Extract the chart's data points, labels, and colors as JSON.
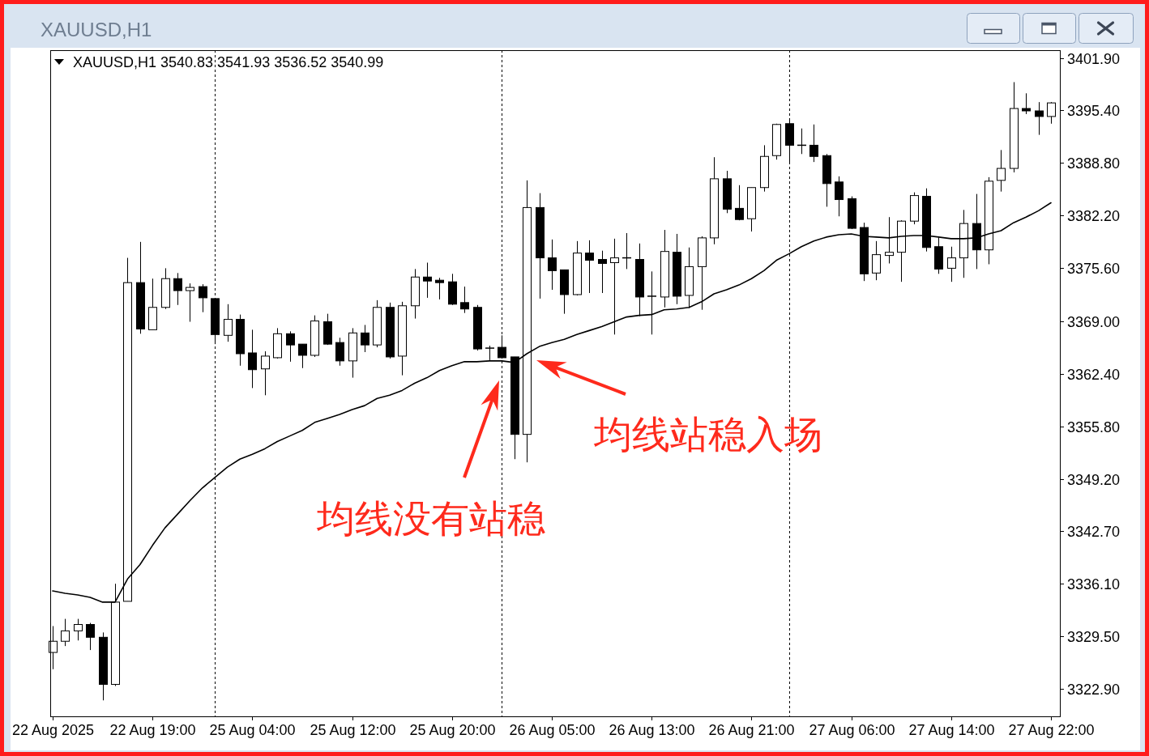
{
  "chart_data": {
    "type": "candlestick",
    "title": "XAUUSD,H1",
    "subtitle": "XAUUSD,H1 3540.83 3541.93 3536.52 3540.99",
    "categories": [
      "22 Aug 2025",
      null,
      null,
      null,
      null,
      null,
      null,
      null,
      "22 Aug 19:00",
      null,
      null,
      null,
      null,
      null,
      null,
      null,
      "25 Aug 04:00",
      null,
      null,
      null,
      null,
      null,
      null,
      null,
      "25 Aug 12:00",
      null,
      null,
      null,
      null,
      null,
      null,
      null,
      "25 Aug 20:00",
      null,
      null,
      null,
      null,
      null,
      null,
      null,
      "26 Aug 05:00",
      null,
      null,
      null,
      null,
      null,
      null,
      null,
      "26 Aug 13:00",
      null,
      null,
      null,
      null,
      null,
      null,
      null,
      "26 Aug 21:00",
      null,
      null,
      null,
      null,
      null,
      null,
      null,
      "27 Aug 06:00",
      null,
      null,
      null,
      null,
      null,
      null,
      null,
      "27 Aug 14:00",
      null,
      null,
      null,
      null,
      null,
      null,
      null,
      "27 Aug 22:00"
    ],
    "ohlc": [
      [
        3327.5,
        3330.8,
        3325.4,
        3328.9
      ],
      [
        3328.9,
        3331.7,
        3328.3,
        3330.2
      ],
      [
        3330.2,
        3331.7,
        3329.0,
        3331.0
      ],
      [
        3331.0,
        3331.2,
        3327.8,
        3329.4
      ],
      [
        3329.4,
        3330.0,
        3321.5,
        3323.5
      ],
      [
        3323.5,
        3336.1,
        3323.3,
        3333.8
      ],
      [
        3333.9,
        3376.9,
        3333.9,
        3373.8
      ],
      [
        3373.8,
        3378.9,
        3367.4,
        3368.0
      ],
      [
        3367.9,
        3374.3,
        3367.9,
        3370.7
      ],
      [
        3370.7,
        3375.6,
        3370.5,
        3374.3
      ],
      [
        3374.3,
        3375.0,
        3371.0,
        3372.8
      ],
      [
        3372.8,
        3373.7,
        3368.9,
        3373.2
      ],
      [
        3373.3,
        3373.6,
        3370.1,
        3371.9
      ],
      [
        3371.8,
        3371.8,
        3366.1,
        3367.3
      ],
      [
        3367.2,
        3371.1,
        3366.4,
        3369.2
      ],
      [
        3369.2,
        3369.8,
        3363.4,
        3364.9
      ],
      [
        3365.0,
        3367.9,
        3360.6,
        3362.9
      ],
      [
        3363.0,
        3365.2,
        3359.7,
        3364.6
      ],
      [
        3364.4,
        3368.1,
        3364.3,
        3367.4
      ],
      [
        3367.4,
        3367.7,
        3363.9,
        3366.0
      ],
      [
        3366.1,
        3366.1,
        3363.1,
        3364.7
      ],
      [
        3364.7,
        3369.7,
        3364.5,
        3369.0
      ],
      [
        3368.9,
        3369.9,
        3366.0,
        3366.1
      ],
      [
        3366.3,
        3366.9,
        3363.4,
        3364.0
      ],
      [
        3364.0,
        3368.1,
        3361.9,
        3367.5
      ],
      [
        3367.5,
        3368.5,
        3365.1,
        3366.0
      ],
      [
        3366.0,
        3371.6,
        3365.7,
        3370.7
      ],
      [
        3370.7,
        3371.3,
        3364.3,
        3364.5
      ],
      [
        3364.6,
        3371.4,
        3362.2,
        3370.9
      ],
      [
        3370.9,
        3375.5,
        3369.3,
        3374.5
      ],
      [
        3374.5,
        3376.3,
        3371.9,
        3374.0
      ],
      [
        3374.1,
        3374.4,
        3371.7,
        3373.8
      ],
      [
        3373.9,
        3374.9,
        3371.0,
        3371.1
      ],
      [
        3371.3,
        3373.3,
        3370.0,
        3370.5
      ],
      [
        3370.7,
        3371.0,
        3365.3,
        3365.5
      ],
      [
        3365.6,
        3365.9,
        3364.1,
        3365.6
      ],
      [
        3365.7,
        3367.2,
        3364.4,
        3364.4
      ],
      [
        3364.5,
        3364.5,
        3351.7,
        3354.8
      ],
      [
        3354.8,
        3386.6,
        3351.3,
        3383.2
      ],
      [
        3383.2,
        3385.0,
        3371.8,
        3376.9
      ],
      [
        3376.9,
        3379.2,
        3372.9,
        3375.3
      ],
      [
        3375.4,
        3375.4,
        3369.9,
        3372.3
      ],
      [
        3372.3,
        3379.0,
        3372.2,
        3377.5
      ],
      [
        3377.5,
        3379.1,
        3372.5,
        3376.6
      ],
      [
        3376.7,
        3377.8,
        3372.5,
        3376.2
      ],
      [
        3376.3,
        3379.3,
        3367.3,
        3376.9
      ],
      [
        3376.9,
        3380.0,
        3375.5,
        3376.9
      ],
      [
        3376.7,
        3378.7,
        3369.6,
        3372.0
      ],
      [
        3372.1,
        3375.2,
        3367.3,
        3372.1
      ],
      [
        3372.0,
        3380.4,
        3370.7,
        3377.7
      ],
      [
        3377.6,
        3379.9,
        3371.1,
        3372.1
      ],
      [
        3372.2,
        3378.2,
        3370.6,
        3375.8
      ],
      [
        3375.8,
        3379.6,
        3370.4,
        3379.4
      ],
      [
        3379.4,
        3389.5,
        3378.6,
        3386.8
      ],
      [
        3386.8,
        3387.8,
        3382.5,
        3383.0
      ],
      [
        3383.1,
        3386.0,
        3381.6,
        3381.7
      ],
      [
        3381.8,
        3385.7,
        3380.2,
        3385.7
      ],
      [
        3385.7,
        3391.0,
        3385.2,
        3389.6
      ],
      [
        3389.7,
        3393.7,
        3389.2,
        3393.6
      ],
      [
        3393.7,
        3394.2,
        3388.7,
        3391.0
      ],
      [
        3391.0,
        3393.1,
        3389.9,
        3391.0
      ],
      [
        3391.0,
        3393.6,
        3388.9,
        3389.6
      ],
      [
        3389.7,
        3389.9,
        3383.3,
        3386.2
      ],
      [
        3386.4,
        3387.1,
        3382.1,
        3384.2
      ],
      [
        3384.3,
        3384.6,
        3380.5,
        3380.6
      ],
      [
        3380.7,
        3381.3,
        3374.0,
        3374.9
      ],
      [
        3375.0,
        3379.0,
        3374.1,
        3377.3
      ],
      [
        3377.2,
        3382.0,
        3376.2,
        3377.6
      ],
      [
        3377.6,
        3381.6,
        3373.9,
        3381.5
      ],
      [
        3381.5,
        3385.1,
        3381.1,
        3384.7
      ],
      [
        3384.6,
        3385.6,
        3377.7,
        3378.2
      ],
      [
        3378.3,
        3379.5,
        3374.9,
        3375.5
      ],
      [
        3375.6,
        3378.3,
        3373.9,
        3376.9
      ],
      [
        3376.9,
        3382.9,
        3374.4,
        3381.2
      ],
      [
        3381.2,
        3384.9,
        3375.5,
        3377.9
      ],
      [
        3377.9,
        3387.0,
        3376.1,
        3386.5
      ],
      [
        3386.6,
        3390.4,
        3385.2,
        3388.1
      ],
      [
        3388.1,
        3398.9,
        3387.6,
        3395.6
      ],
      [
        3395.6,
        3397.5,
        3394.9,
        3395.3
      ],
      [
        3395.3,
        3396.4,
        3392.3,
        3394.6
      ],
      [
        3394.6,
        3396.4,
        3393.7,
        3396.3
      ]
    ],
    "series": [
      {
        "type": "line",
        "color": "#000000",
        "values": [
          3335.2,
          3334.9,
          3334.7,
          3334.4,
          3333.8,
          3333.8,
          3336.7,
          3338.5,
          3340.9,
          3343.1,
          3344.8,
          3346.5,
          3348.1,
          3349.4,
          3350.7,
          3351.7,
          3352.3,
          3353.0,
          3353.9,
          3354.6,
          3355.3,
          3356.3,
          3356.8,
          3357.3,
          3357.9,
          3358.4,
          3359.3,
          3359.7,
          3360.3,
          3361.2,
          3361.9,
          3362.8,
          3363.4,
          3363.9,
          3363.9,
          3364.0,
          3364.0,
          3363.8,
          3364.9,
          3365.8,
          3366.3,
          3366.7,
          3367.3,
          3367.8,
          3368.3,
          3368.9,
          3369.5,
          3369.7,
          3369.8,
          3370.4,
          3370.5,
          3370.7,
          3371.4,
          3372.4,
          3372.9,
          3373.5,
          3374.3,
          3375.3,
          3376.6,
          3377.4,
          3378.3,
          3379.0,
          3379.5,
          3379.8,
          3379.9,
          3379.6,
          3379.5,
          3379.4,
          3379.6,
          3379.7,
          3379.7,
          3379.5,
          3379.3,
          3379.3,
          3379.4,
          3379.9,
          3380.3,
          3381.3,
          3382.0,
          3382.8,
          3383.8
        ]
      }
    ],
    "ylim": [
      3319.5,
      3402.9
    ],
    "yticks": [
      {
        "value": 3322.9,
        "label": "3322.90"
      },
      {
        "value": 3329.5,
        "label": "3329.50"
      },
      {
        "value": 3336.1,
        "label": "3336.10"
      },
      {
        "value": 3342.7,
        "label": "3342.70"
      },
      {
        "value": 3349.2,
        "label": "3349.20"
      },
      {
        "value": 3355.8,
        "label": "3355.80"
      },
      {
        "value": 3362.4,
        "label": "3362.40"
      },
      {
        "value": 3369.0,
        "label": "3369.00"
      },
      {
        "value": 3375.6,
        "label": "3375.60"
      },
      {
        "value": 3382.2,
        "label": "3382.20"
      },
      {
        "value": 3388.8,
        "label": "3388.80"
      },
      {
        "value": 3395.4,
        "label": "3395.40"
      },
      {
        "value": 3401.9,
        "label": "3401.90"
      }
    ],
    "grid": "x",
    "annotations": [
      "均线站稳入场",
      "均线没有站稳"
    ]
  }
}
